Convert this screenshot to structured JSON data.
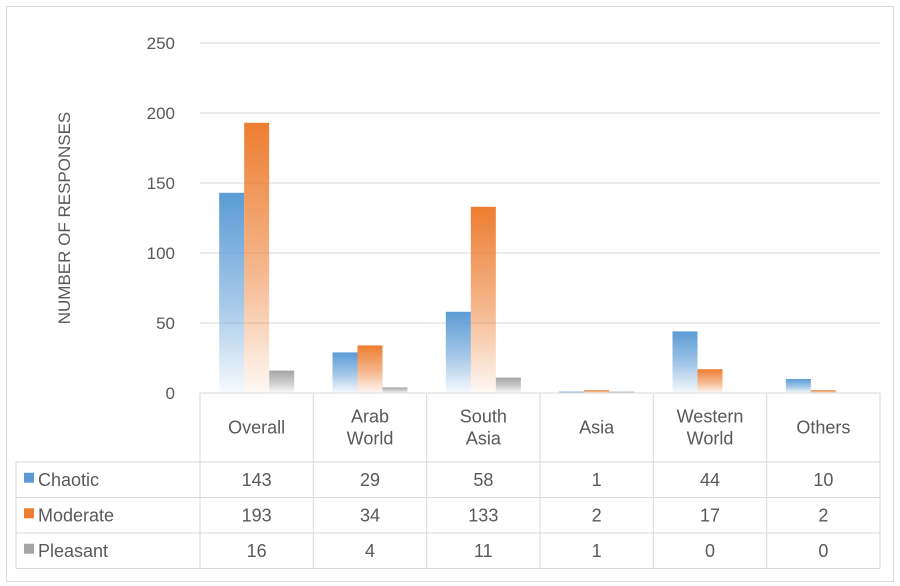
{
  "chart_data": {
    "type": "bar",
    "title": "",
    "xlabel": "",
    "ylabel": "NUMBER OF RESPONSES",
    "ylim": [
      0,
      250
    ],
    "yticks": [
      0,
      50,
      100,
      150,
      200,
      250
    ],
    "grid": true,
    "legend": "data-table-left",
    "categories": [
      [
        "Overall"
      ],
      [
        "Arab",
        "World"
      ],
      [
        "South",
        "Asia"
      ],
      [
        "Asia"
      ],
      [
        "Western",
        "World"
      ],
      [
        "Others"
      ]
    ],
    "series": [
      {
        "name": "Chaotic",
        "color": "#5b9bd5",
        "values": [
          143,
          29,
          58,
          1,
          44,
          10
        ]
      },
      {
        "name": "Moderate",
        "color": "#ed7d31",
        "values": [
          193,
          34,
          133,
          2,
          17,
          2
        ]
      },
      {
        "name": "Pleasant",
        "color": "#a5a5a5",
        "values": [
          16,
          4,
          11,
          1,
          0,
          0
        ]
      }
    ]
  }
}
